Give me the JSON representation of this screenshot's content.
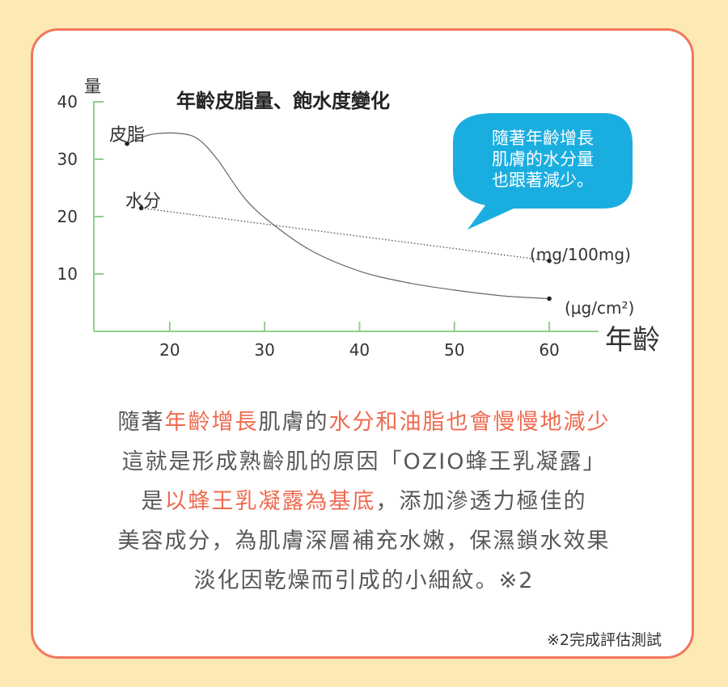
{
  "chart_data": {
    "type": "line",
    "title": "年齡皮脂量、飽水度變化",
    "ylabel": "量",
    "xlabel": "年齡",
    "xlim": [
      12,
      64
    ],
    "ylim": [
      0,
      40
    ],
    "x_ticks": [
      20,
      30,
      40,
      50,
      60
    ],
    "y_ticks": [
      10,
      20,
      30,
      40
    ],
    "series": [
      {
        "name": "皮脂",
        "unit": "(μg/cm²)",
        "color": "#666666",
        "style": "solid",
        "x": [
          15.5,
          18,
          21,
          23,
          25,
          28,
          31,
          35,
          40,
          45,
          50,
          55,
          60
        ],
        "y": [
          32.7,
          34.3,
          34.5,
          33.5,
          30,
          23,
          18.5,
          14,
          10.5,
          8.5,
          7.2,
          6.2,
          5.7
        ]
      },
      {
        "name": "水分",
        "unit": "(mg/100mg)",
        "color": "#555555",
        "style": "dotted",
        "x": [
          17,
          60
        ],
        "y": [
          21.5,
          12.3
        ]
      }
    ],
    "callout": [
      "隨著年齡增長",
      "肌膚的水分量",
      "也跟著減少。"
    ],
    "callout_color": "#1aaee0",
    "grid": false
  },
  "text": {
    "lines": [
      [
        {
          "t": "隨著",
          "hl": false
        },
        {
          "t": "年齡增長",
          "hl": true
        },
        {
          "t": "肌膚的",
          "hl": false
        },
        {
          "t": "水分和油脂也會慢慢地減少",
          "hl": true
        }
      ],
      [
        {
          "t": "這就是形成熟齡肌的原因「OZIO蜂王乳凝露」",
          "hl": false
        }
      ],
      [
        {
          "t": "是",
          "hl": false
        },
        {
          "t": "以蜂王乳凝露為基底",
          "hl": true
        },
        {
          "t": "，添加滲透力極佳的",
          "hl": false
        }
      ],
      [
        {
          "t": "美容成分，為肌膚深層補充水嫩，保濕鎖水效果",
          "hl": false
        }
      ],
      [
        {
          "t": "淡化因乾燥而引成的小細紋。※2",
          "hl": false
        }
      ]
    ],
    "footnote": "※2完成評估測試"
  },
  "colors": {
    "background": "#fde9b4",
    "card_border": "#f2775e",
    "axis": "#8fd08a",
    "highlight": "#ef6a4f",
    "text": "#585858"
  }
}
